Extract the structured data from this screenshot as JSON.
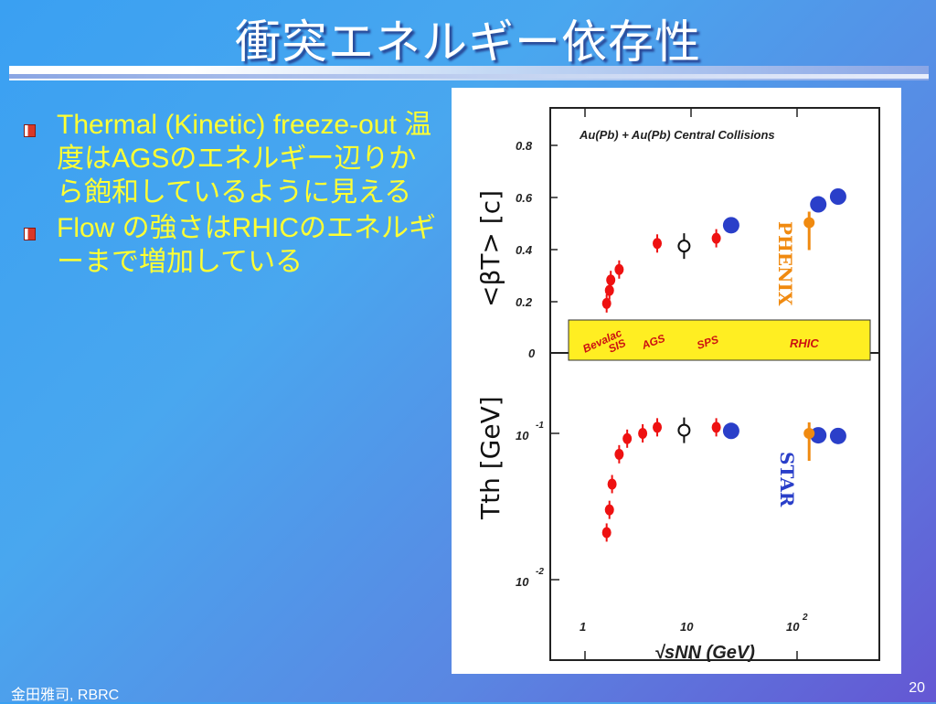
{
  "slide": {
    "title": "衝突エネルギー依存性",
    "footer": "金田雅司, RBRC",
    "page_number": "20"
  },
  "bullets": [
    {
      "text": "Thermal (Kinetic) freeze-out 温度はAGSのエネルギー辺りから飽和しているように見える"
    },
    {
      "text": "Flow の強さはRHICのエネルギーまで増加している"
    }
  ],
  "figure": {
    "header": "Au(Pb) + Au(Pb) Central Collisions",
    "ylabel_top": "<βT>  [c]",
    "ylabel_bottom": "Tth [GeV]",
    "xlabel": "√sNN (GeV)",
    "band_labels": [
      "Bevalac SIS",
      "AGS",
      "SPS",
      "RHIC"
    ],
    "band_label_bevalac": "Bevalac",
    "band_label_sis": "SIS",
    "band_label_ags": "AGS",
    "band_label_sps": "SPS",
    "band_label_rhic": "RHIC",
    "experiment_phenix": "PHENIX",
    "experiment_star": "STAR",
    "top_ticks": [
      "0.8",
      "0.6",
      "0.4",
      "0.2",
      "0"
    ],
    "bottom_tick_base": "10",
    "bottom_tick_exp_hi": "-1",
    "bottom_tick_exp_lo": "-2",
    "x_tick_1": "1",
    "x_tick_10": "10",
    "x_tick_100_base": "10",
    "x_tick_100_exp": "2",
    "colors": {
      "data_red": "#ee1111",
      "open_black": "#111111",
      "star_blue": "#2a3fc9",
      "phenix_orange": "#f08a10",
      "band_yellow": "#ffee22"
    }
  },
  "chart_data": [
    {
      "type": "scatter",
      "title": "Au(Pb) + Au(Pb) Central Collisions",
      "xlabel": "√sNN (GeV)",
      "ylabel": "<βT> [c]",
      "xscale": "log",
      "xlim": [
        0.6,
        300
      ],
      "ylim": [
        0,
        0.8
      ],
      "series": [
        {
          "name": "",
          "marker": "filled-red",
          "x": [
            1.6,
            1.7,
            1.75,
            2.1,
            4.8
          ],
          "y": [
            0.19,
            0.24,
            0.28,
            0.32,
            0.42
          ]
        },
        {
          "name": "",
          "marker": "open-black",
          "x": [
            8.6
          ],
          "y": [
            0.41
          ]
        },
        {
          "name": "",
          "marker": "filled-red",
          "x": [
            17.3
          ],
          "y": [
            0.44
          ]
        },
        {
          "name": "STAR",
          "marker": "filled-blue",
          "x": [
            19.6,
            130,
            200
          ],
          "y": [
            0.49,
            0.57,
            0.6
          ]
        },
        {
          "name": "PHENIX",
          "marker": "filled-orange",
          "x": [
            130
          ],
          "y": [
            0.5
          ]
        }
      ]
    },
    {
      "type": "scatter",
      "xlabel": "√sNN (GeV)",
      "ylabel": "Tth [GeV]",
      "xscale": "log",
      "yscale": "log",
      "xlim": [
        0.6,
        300
      ],
      "ylim": [
        0.008,
        0.2
      ],
      "series": [
        {
          "name": "",
          "marker": "filled-red",
          "x": [
            1.6,
            1.7,
            1.8,
            2.1,
            2.5,
            3.5,
            4.8
          ],
          "y": [
            0.021,
            0.03,
            0.045,
            0.072,
            0.092,
            0.1,
            0.11
          ]
        },
        {
          "name": "",
          "marker": "open-black",
          "x": [
            8.6
          ],
          "y": [
            0.105
          ]
        },
        {
          "name": "",
          "marker": "filled-red",
          "x": [
            17.3
          ],
          "y": [
            0.11
          ]
        },
        {
          "name": "STAR",
          "marker": "filled-blue",
          "x": [
            19.6,
            130,
            200
          ],
          "y": [
            0.104,
            0.097,
            0.096
          ]
        },
        {
          "name": "PHENIX",
          "marker": "filled-orange",
          "x": [
            130
          ],
          "y": [
            0.1
          ]
        }
      ]
    }
  ]
}
